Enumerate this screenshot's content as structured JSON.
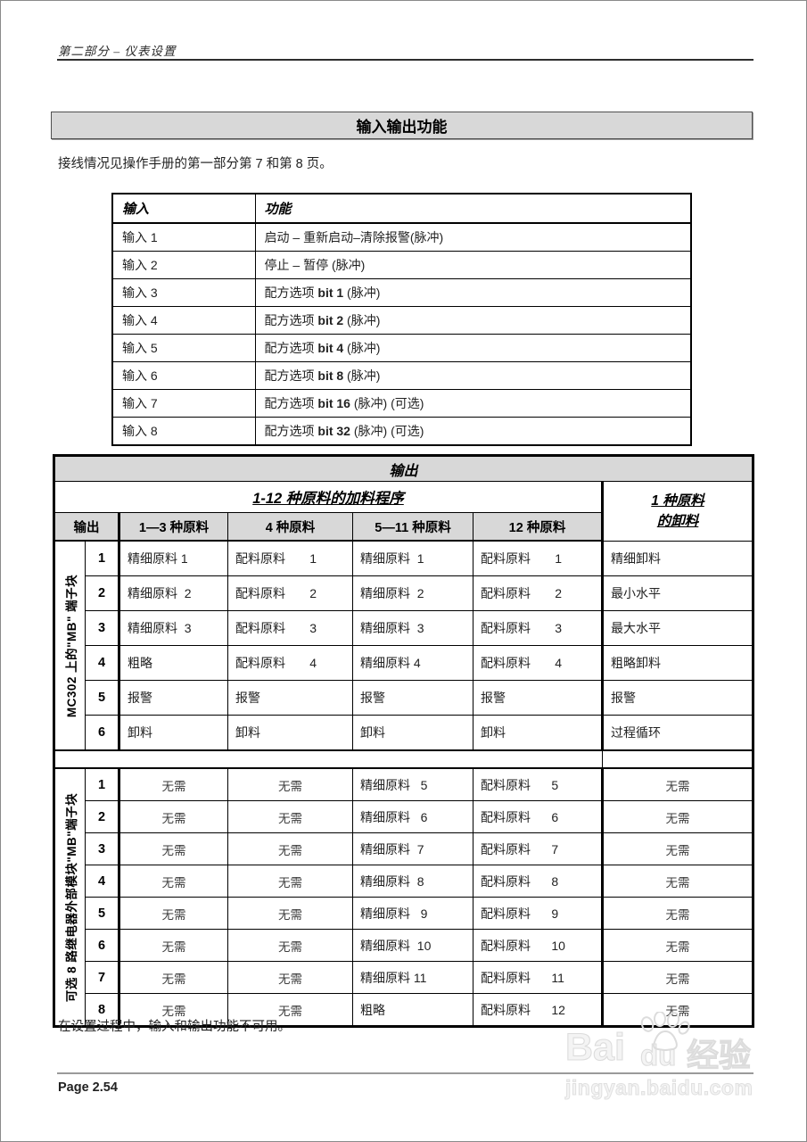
{
  "page": {
    "running_header": "第二部分 – 仪表设置",
    "section_title": "输入输出功能",
    "intro": "接线情况见操作手册的第一部分第 7 和第 8 页。",
    "note": "在设置过程中，输入和输出功能不可用。",
    "page_number": "Page 2.54"
  },
  "input_table": {
    "headers": [
      "输入",
      "功能"
    ],
    "rows": [
      [
        "输入 1",
        "启动 – 重新启动–清除报警(脉冲)"
      ],
      [
        "输入 2",
        "停止 – 暂停  (脉冲)"
      ],
      [
        "输入 3",
        "配方选项 bit 1 (脉冲)"
      ],
      [
        "输入 4",
        "配方选项 bit 2 (脉冲)"
      ],
      [
        "输入 5",
        "配方选项 bit 4 (脉冲)"
      ],
      [
        "输入 6",
        "配方选项 bit 8 (脉冲)"
      ],
      [
        "输入 7",
        "配方选项 bit 16 (脉冲) (可选)"
      ],
      [
        "输入 8",
        "配方选项 bit 32 (脉冲) (可选)"
      ]
    ]
  },
  "output_table": {
    "title": "输出",
    "group_header": "1-12 种原料的加料程序",
    "last_col_header": [
      "1 种原料",
      "的卸料"
    ],
    "col_headers": [
      "输出",
      "1—3 种原料",
      "4 种原料",
      "5—11 种原料",
      "12 种原料"
    ],
    "section1_label": "MC302 上的\"MB\" 端子块",
    "section2_label": "可选 8 路继电器外部模块\"MB\"端子块",
    "section1_rows": [
      [
        "精细原料 1",
        "配料原料       1",
        "精细原料  1",
        "配料原料       1",
        "精细卸料"
      ],
      [
        "精细原料  2",
        "配料原料       2",
        "精细原料  2",
        "配料原料       2",
        "最小水平"
      ],
      [
        "精细原料  3",
        "配料原料       3",
        "精细原料  3",
        "配料原料       3",
        "最大水平"
      ],
      [
        "粗略",
        "配料原料       4",
        "精细原料 4",
        "配料原料       4",
        "粗略卸料"
      ],
      [
        "报警",
        "报警",
        "报警",
        "报警",
        "报警"
      ],
      [
        "卸料",
        "卸料",
        "卸料",
        "卸料",
        "过程循环"
      ]
    ],
    "section2_rows": [
      [
        "无需",
        "无需",
        "精细原料   5",
        "配料原料      5",
        "无需"
      ],
      [
        "无需",
        "无需",
        "精细原料   6",
        "配料原料      6",
        "无需"
      ],
      [
        "无需",
        "无需",
        "精细原料  7",
        "配料原料      7",
        "无需"
      ],
      [
        "无需",
        "无需",
        "精细原料  8",
        "配料原料      8",
        "无需"
      ],
      [
        "无需",
        "无需",
        "精细原料   9",
        "配料原料      9",
        "无需"
      ],
      [
        "无需",
        "无需",
        "精细原料  10",
        "配料原料      10",
        "无需"
      ],
      [
        "无需",
        "无需",
        "精细原料 11",
        "配料原料      11",
        "无需"
      ],
      [
        "无需",
        "无需",
        "粗略",
        "配料原料      12",
        "无需"
      ]
    ]
  },
  "watermark": {
    "brand_part1": "Bai",
    "brand_part2": "du",
    "brand_part3": "经验",
    "tagline": "jingyan.baidu.com",
    "paw_icon": "baidu-paw-icon",
    "color": "#dcdcdc"
  }
}
